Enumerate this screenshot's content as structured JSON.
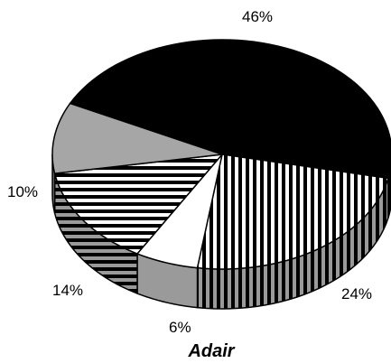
{
  "chart_data": {
    "type": "pie",
    "title": "Adair",
    "labels": [
      "46%",
      "24%",
      "6%",
      "14%",
      "10%"
    ],
    "values": [
      46,
      24,
      6,
      14,
      10
    ],
    "fills": [
      "solid-black",
      "vertical-stripes",
      "white",
      "horizontal-stripes",
      "gray"
    ],
    "colors": {
      "black": "#000000",
      "gray": "#a6a6a6",
      "white": "#ffffff",
      "outline": "#000000"
    },
    "legend": "none",
    "style": "3d-pie"
  }
}
